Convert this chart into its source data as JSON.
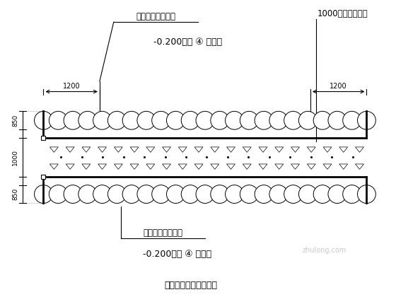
{
  "title": "三轴搅拌桩平面示意图",
  "bg_color": "#ffffff",
  "line_color": "#000000",
  "label_top_left": "三轴水泥土搅拌桩",
  "label_top_right": "1000厚地下连续墙",
  "label_depth_top": "-0.200～第 ④ 层底部",
  "label_bottom_left": "三轴水泥土搅拌桩",
  "label_depth_bottom": "-0.200～第 ④ 层底部",
  "dim_1200_left": "1200",
  "dim_1200_right": "1200",
  "dim_850_top": "850",
  "dim_1000": "1000",
  "dim_850_bottom": "850"
}
